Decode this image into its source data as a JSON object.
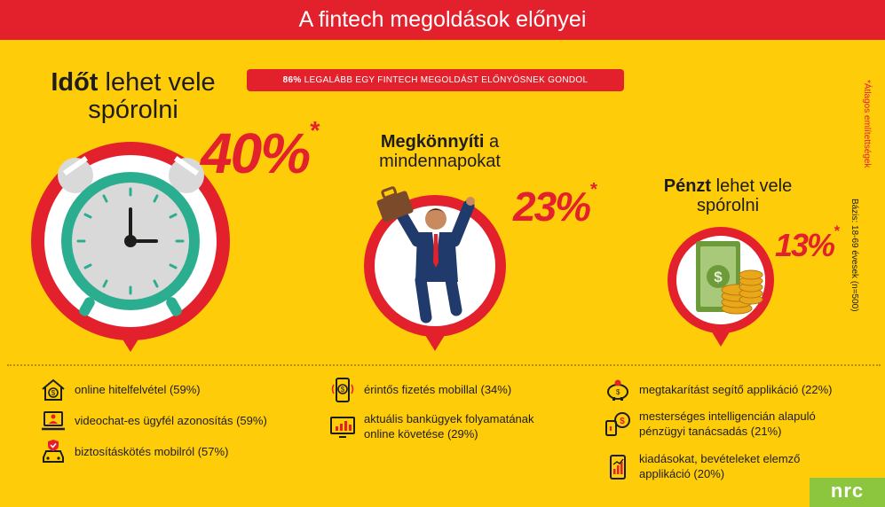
{
  "header": {
    "title": "A fintech megoldások előnyei"
  },
  "badge": {
    "value": "86%",
    "text": " legalább egy fintech megoldást előnyösnek gondol"
  },
  "benefits": [
    {
      "strong": "Időt",
      "rest": " lehet vele",
      "line2": "spórolni",
      "percent": "40%",
      "star": "*",
      "icon": "alarm-clock-icon"
    },
    {
      "strong": "Megkönnyíti",
      "rest": " a",
      "line2": "mindennapokat",
      "percent": "23%",
      "star": "*",
      "icon": "happy-businessman-icon"
    },
    {
      "strong": "Pénzt",
      "rest": " lehet vele",
      "line2": "spórolni",
      "percent": "13%",
      "star": "*",
      "icon": "cash-coins-icon"
    }
  ],
  "side_notes": {
    "average": "*Átlagos említettségek",
    "base": "Bázis: 18-69 évesek (n=500)"
  },
  "features": [
    {
      "text": "online hitelfelvétel (59%)",
      "icon": "house-money-icon"
    },
    {
      "text": "videochat-es ügyfél azonosítás (59%)",
      "icon": "laptop-user-icon"
    },
    {
      "text": "biztosításkötés mobilról (57%)",
      "icon": "car-shield-icon"
    },
    {
      "text": "érintős fizetés mobillal (34%)",
      "icon": "contactless-phone-icon"
    },
    {
      "text": "aktuális bankügyek folyamatának",
      "text2": "online követése (29%)",
      "icon": "monitor-chart-icon"
    },
    {
      "text": "megtakarítást segítő applikáció (22%)",
      "icon": "piggy-bank-icon"
    },
    {
      "text": "mesterséges intelligencián alapuló",
      "text2": "pénzügyi tanácsadás (21%)",
      "icon": "ai-advisor-icon"
    },
    {
      "text": "kiadásokat, bevételeket elemző",
      "text2": "applikáció (20%)",
      "icon": "phone-chart-icon"
    }
  ],
  "logo": {
    "text": "nrc"
  },
  "colors": {
    "background": "#FFCC0A",
    "accent": "#E3212D",
    "teal": "#2BAE8F",
    "logo_green": "#8CC63F"
  }
}
